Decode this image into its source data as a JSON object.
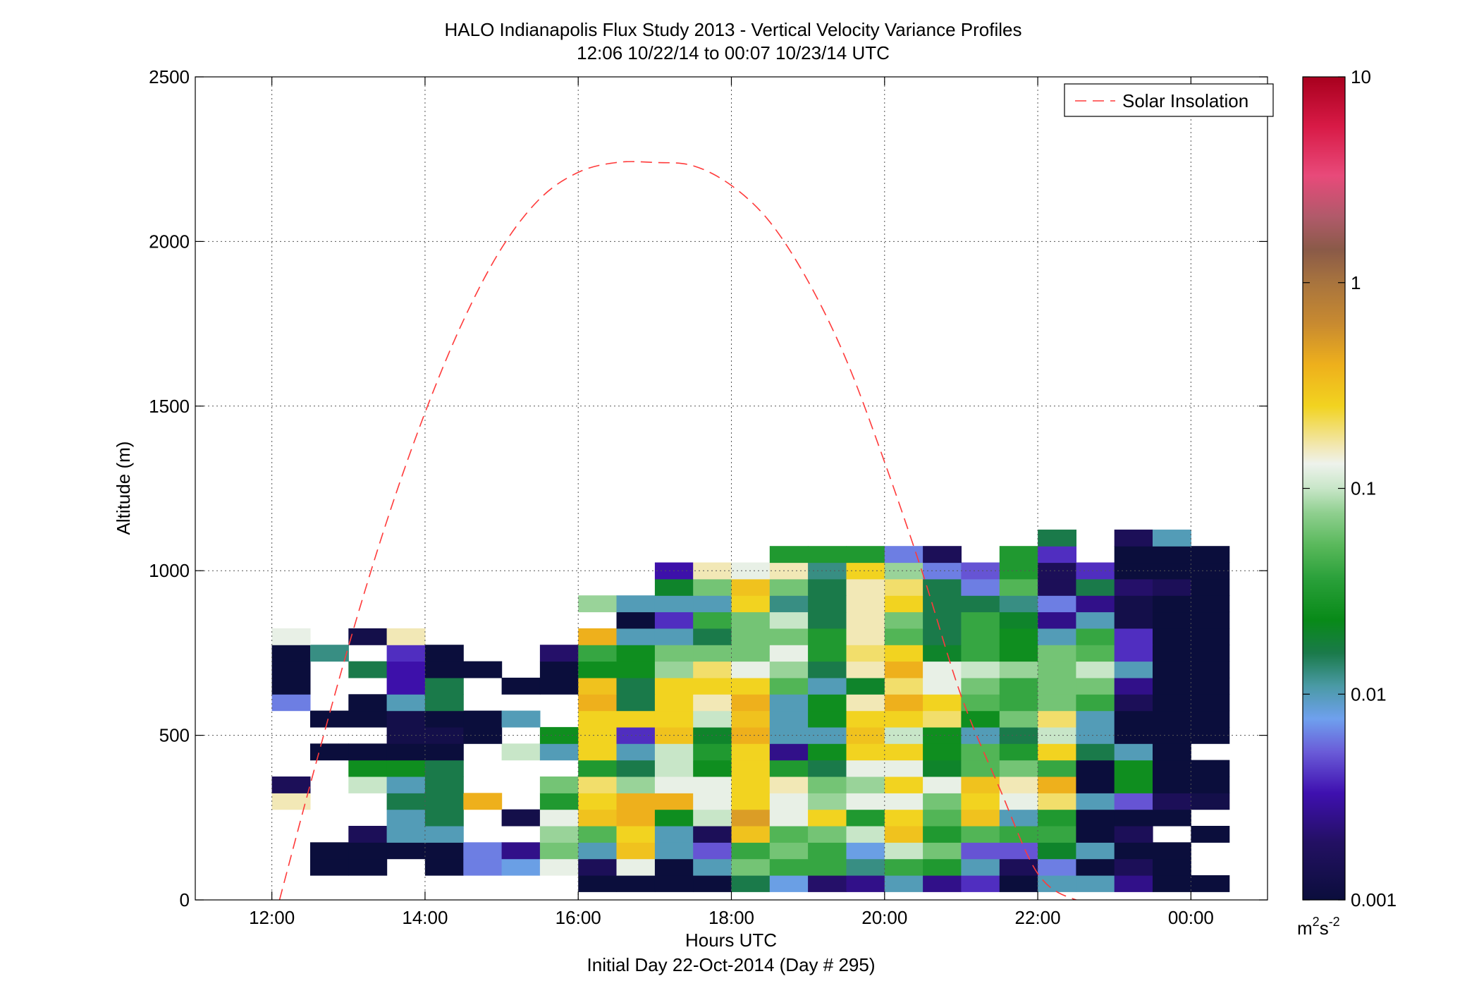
{
  "chart_data": {
    "type": "heatmap",
    "title": "HALO Indianapolis Flux Study 2013 - Vertical Velocity Variance Profiles",
    "subtitle": "12:06 10/22/14 to 00:07 10/23/14  UTC",
    "xlabel": "Hours UTC",
    "xlabel2": "Initial Day 22-Oct-2014 (Day # 295)",
    "ylabel": "Altitude (m)",
    "xlim": [
      11,
      25
    ],
    "ylim": [
      0,
      2500
    ],
    "x_ticks": [
      12,
      14,
      16,
      18,
      20,
      22,
      24
    ],
    "x_tick_labels": [
      "12:00",
      "14:00",
      "16:00",
      "18:00",
      "20:00",
      "22:00",
      "00:00"
    ],
    "y_ticks": [
      0,
      500,
      1000,
      1500,
      2000,
      2500
    ],
    "y_tick_labels": [
      "0",
      "500",
      "1000",
      "1500",
      "2000",
      "2500"
    ],
    "grid": true,
    "legend": {
      "label": "Solar Insolation",
      "position": "top-right",
      "line_color": "#ff3a3a",
      "line_style": "dashed"
    },
    "colorbar": {
      "scale": "log",
      "range": [
        0.001,
        10
      ],
      "ticks": [
        0.001,
        0.01,
        0.1,
        1,
        10
      ],
      "tick_labels": [
        "0.001",
        "0.01",
        "0.1",
        "1",
        "10"
      ],
      "unit_base": "m",
      "unit_sup1": "2",
      "unit_mid": "s",
      "unit_sup2": "-2",
      "stops": [
        [
          0.0,
          "#0b0e3c"
        ],
        [
          0.07,
          "#231063"
        ],
        [
          0.13,
          "#3f10b0"
        ],
        [
          0.18,
          "#6a5cd8"
        ],
        [
          0.22,
          "#6fa0ee"
        ],
        [
          0.26,
          "#4a9aa5"
        ],
        [
          0.3,
          "#1a7a4a"
        ],
        [
          0.34,
          "#088a18"
        ],
        [
          0.39,
          "#2aa03a"
        ],
        [
          0.43,
          "#58b85a"
        ],
        [
          0.47,
          "#8fcf8f"
        ],
        [
          0.5,
          "#c8e6c8"
        ],
        [
          0.53,
          "#eef2ec"
        ],
        [
          0.55,
          "#f2e8b6"
        ],
        [
          0.6,
          "#f2d320"
        ],
        [
          0.65,
          "#eeb01c"
        ],
        [
          0.7,
          "#c88a30"
        ],
        [
          0.75,
          "#a8743e"
        ],
        [
          0.79,
          "#8a5a48"
        ],
        [
          0.83,
          "#b05a6a"
        ],
        [
          0.88,
          "#e84a7a"
        ],
        [
          0.94,
          "#d81a46"
        ],
        [
          1.0,
          "#a8001e"
        ]
      ]
    },
    "x_bins": [
      12,
      12.5,
      13,
      13.5,
      14,
      14.5,
      15,
      15.5,
      16,
      16.5,
      17,
      17.5,
      18,
      18.5,
      19,
      19.5,
      20,
      20.5,
      21,
      21.5,
      22,
      22.5,
      23,
      23.5,
      24
    ],
    "y_bins": [
      50,
      100,
      150,
      200,
      250,
      300,
      350,
      400,
      450,
      500,
      550,
      600,
      650,
      700,
      750,
      800,
      850,
      900,
      950,
      1000,
      1050,
      1100
    ],
    "values_log10": [
      [
        "",
        "",
        "",
        "",
        "",
        "",
        "",
        "",
        -3.0,
        -3.0,
        -3.0,
        -3.0,
        -1.8,
        -2.1,
        -2.7,
        -2.6,
        -2.0,
        -2.6,
        -2.4,
        -3.0,
        -2.0,
        -2.0,
        -2.6,
        -3.0,
        -3.0
      ],
      [
        "",
        -3.0,
        -3.0,
        "",
        -3.0,
        -2.2,
        -2.1,
        -0.9,
        -2.8,
        -0.9,
        -3.0,
        -2.0,
        -1.2,
        -1.4,
        -1.4,
        -1.9,
        -1.4,
        -1.5,
        -2.0,
        -2.8,
        -2.2,
        -3.0,
        -2.8,
        -3.0,
        ""
      ],
      [
        "",
        -3.0,
        -3.0,
        -3.0,
        -3.0,
        -2.2,
        -2.6,
        -1.2,
        -2.0,
        -0.5,
        -2.0,
        -2.3,
        -1.4,
        -1.2,
        -1.4,
        -2.1,
        -1.0,
        -1.2,
        -2.3,
        -2.3,
        -1.7,
        -2.0,
        -3.0,
        -3.0,
        ""
      ],
      [
        "",
        "",
        -2.8,
        -2.0,
        -2.0,
        "",
        "",
        -1.1,
        -1.3,
        -0.6,
        -2.0,
        -2.8,
        -0.5,
        -1.3,
        -1.2,
        -1.0,
        -0.5,
        -1.5,
        -1.3,
        -1.4,
        -1.4,
        -3.0,
        -2.8,
        "",
        -3.0
      ],
      [
        "",
        "",
        "",
        -2.0,
        -1.8,
        "",
        -2.9,
        -0.9,
        -0.5,
        -0.4,
        -1.6,
        -1.0,
        -0.3,
        -0.9,
        -0.6,
        -1.5,
        -0.6,
        -1.3,
        -0.5,
        -2.0,
        -1.5,
        -3.0,
        -3.0,
        -3.0,
        ""
      ],
      [
        -0.8,
        "",
        "",
        -1.8,
        -1.8,
        -0.4,
        "",
        -1.5,
        -0.6,
        -0.4,
        -0.4,
        -0.9,
        -0.6,
        -0.9,
        -1.1,
        -0.9,
        -0.9,
        -1.2,
        -0.6,
        -0.9,
        -0.7,
        -2.0,
        -2.3,
        -2.8,
        -2.9
      ],
      [
        -2.8,
        "",
        -1.0,
        -2.0,
        -1.8,
        "",
        "",
        -1.2,
        -0.7,
        -1.1,
        -0.9,
        -0.9,
        -0.6,
        -0.8,
        -1.2,
        -1.1,
        -0.6,
        -0.9,
        -0.5,
        -0.8,
        -0.4,
        -3.0,
        -1.6,
        -3.0,
        -3.0
      ],
      [
        "",
        "",
        -1.6,
        -1.6,
        -1.8,
        "",
        "",
        "",
        -1.5,
        -1.8,
        -1.0,
        -1.6,
        -0.6,
        -1.5,
        -1.8,
        -0.9,
        -0.9,
        -1.7,
        -1.3,
        -1.2,
        -1.4,
        -3.0,
        -1.6,
        -3.0,
        -3.0
      ],
      [
        "",
        -3.0,
        -3.0,
        -3.0,
        -3.0,
        "",
        -1.0,
        -2.0,
        -0.6,
        -2.0,
        -1.0,
        -1.5,
        -0.6,
        -2.6,
        -1.6,
        -0.6,
        -0.6,
        -1.6,
        -1.3,
        -1.5,
        -0.6,
        -1.8,
        -2.0,
        -3.0,
        ""
      ],
      [
        "",
        "",
        "",
        -2.9,
        -2.9,
        -3.0,
        "",
        -1.6,
        -0.6,
        -2.4,
        -0.5,
        -1.7,
        -0.4,
        -2.0,
        -2.0,
        -0.5,
        -1.0,
        -1.6,
        -2.0,
        -1.8,
        -1.0,
        -2.0,
        -3.0,
        -3.0,
        -3.0
      ],
      [
        "",
        -3.0,
        -3.0,
        -2.9,
        -3.0,
        -3.0,
        -2.0,
        "",
        -0.6,
        -0.6,
        -0.6,
        -1.0,
        -0.5,
        -2.0,
        -1.6,
        -0.6,
        -0.6,
        -0.7,
        -1.6,
        -1.2,
        -0.7,
        -2.0,
        -3.0,
        -3.0,
        -3.0
      ],
      [
        -2.2,
        "",
        -3.0,
        -2.0,
        -1.8,
        "",
        "",
        "",
        -0.4,
        -1.8,
        -0.6,
        -0.8,
        -0.4,
        -2.0,
        -1.6,
        -0.8,
        -0.4,
        -0.6,
        -1.3,
        -1.4,
        -1.2,
        -1.4,
        -2.8,
        -3.0,
        -3.0
      ],
      [
        -3.0,
        "",
        "",
        -2.5,
        -1.8,
        "",
        -3.0,
        -3.0,
        -0.5,
        -1.8,
        -0.6,
        -0.6,
        -0.6,
        -1.3,
        -2.0,
        -1.7,
        -0.7,
        -0.9,
        -1.2,
        -1.4,
        -1.2,
        -1.2,
        -2.6,
        -3.0,
        -3.0
      ],
      [
        -3.0,
        "",
        -1.8,
        -2.5,
        -3.0,
        -3.0,
        "",
        -3.0,
        -1.6,
        -1.6,
        -1.1,
        -0.7,
        -0.9,
        -1.1,
        -1.8,
        -0.8,
        -0.4,
        -0.9,
        -1.0,
        -1.1,
        -1.2,
        -1.0,
        -2.0,
        -3.0,
        -3.0
      ],
      [
        -3.0,
        -1.9,
        "",
        -2.4,
        -3.0,
        "",
        "",
        -2.7,
        -1.4,
        -1.6,
        -1.2,
        -1.2,
        -1.2,
        -0.9,
        -1.5,
        -0.7,
        -0.6,
        -1.7,
        -1.4,
        -1.6,
        -1.2,
        -1.3,
        -2.4,
        -3.0,
        -3.0
      ],
      [
        -0.9,
        "",
        -2.9,
        -0.8,
        "",
        "",
        "",
        "",
        -0.4,
        -2.0,
        -2.0,
        -1.8,
        -1.2,
        -1.2,
        -1.5,
        -0.8,
        -1.3,
        -1.8,
        -1.4,
        -1.6,
        -2.0,
        -1.4,
        -2.4,
        -3.0,
        -3.0
      ],
      [
        "",
        "",
        "",
        "",
        "",
        "",
        "",
        "",
        "",
        -3.0,
        -2.4,
        -1.4,
        -1.2,
        -1.0,
        -1.8,
        -0.8,
        -1.2,
        -1.8,
        -1.4,
        -1.7,
        -2.6,
        -2.0,
        -2.9,
        -3.0,
        -3.0
      ],
      [
        "",
        "",
        "",
        "",
        "",
        "",
        "",
        "",
        -1.1,
        -2.0,
        -2.0,
        -2.0,
        -0.6,
        -1.9,
        -1.8,
        -0.8,
        -0.6,
        -1.8,
        -1.8,
        -1.9,
        -2.2,
        -2.6,
        -2.9,
        -3.0,
        -3.0
      ],
      [
        "",
        "",
        "",
        "",
        "",
        "",
        "",
        "",
        "",
        "",
        -1.7,
        -1.2,
        -0.5,
        -1.2,
        -1.8,
        -0.8,
        -0.7,
        -1.8,
        -2.2,
        -1.3,
        -2.8,
        -1.8,
        -2.7,
        -2.8,
        -3.0
      ],
      [
        "",
        "",
        "",
        "",
        "",
        "",
        "",
        "",
        "",
        "",
        -2.5,
        -0.8,
        -0.9,
        -0.8,
        -1.9,
        -0.6,
        -1.1,
        -2.2,
        -2.3,
        -1.5,
        -2.8,
        -2.4,
        -3.0,
        -3.0,
        -3.0
      ],
      [
        "",
        "",
        "",
        "",
        "",
        "",
        "",
        "",
        "",
        "",
        "",
        "",
        "",
        -1.5,
        -1.5,
        -1.5,
        -2.2,
        -2.8,
        "",
        -1.5,
        -2.4,
        "",
        -3.0,
        -3.0,
        -3.0
      ],
      [
        "",
        "",
        "",
        "",
        "",
        "",
        "",
        "",
        "",
        "",
        "",
        "",
        "",
        "",
        "",
        "",
        "",
        "",
        "",
        "",
        -1.8,
        "",
        -2.8,
        -2.0,
        ""
      ]
    ],
    "solar_insolation_curve": {
      "hours": [
        12.1,
        12.5,
        13.0,
        13.5,
        14.0,
        14.5,
        15.0,
        15.5,
        16.0,
        16.5,
        17.0,
        17.5,
        18.0,
        18.5,
        19.0,
        19.5,
        20.0,
        20.5,
        21.0,
        21.5,
        22.0,
        22.5,
        22.9
      ],
      "values": [
        0,
        350,
        770,
        1150,
        1480,
        1760,
        1980,
        2130,
        2210,
        2240,
        2240,
        2230,
        2170,
        2060,
        1880,
        1640,
        1330,
        990,
        620,
        340,
        80,
        0,
        0
      ]
    }
  }
}
